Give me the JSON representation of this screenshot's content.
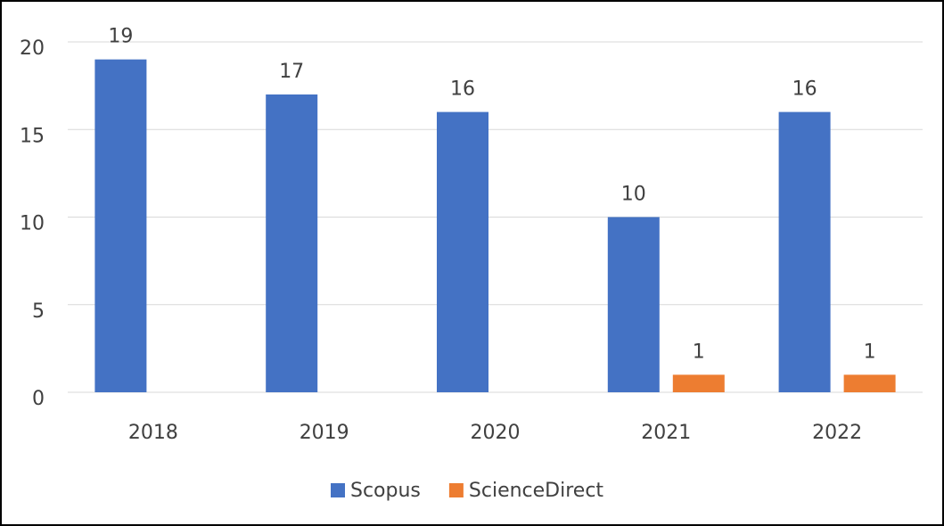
{
  "chart_data": {
    "type": "bar",
    "categories": [
      "2018",
      "2019",
      "2020",
      "2021",
      "2022"
    ],
    "series": [
      {
        "name": "Scopus",
        "color": "#4472c4",
        "values": [
          19,
          17,
          16,
          10,
          16
        ]
      },
      {
        "name": "ScienceDirect",
        "color": "#ed7d31",
        "values": [
          null,
          null,
          null,
          1,
          1
        ]
      }
    ],
    "ylim": [
      0,
      20
    ],
    "yticks": [
      0,
      5,
      10,
      15,
      20
    ],
    "grid": true,
    "legend": "bottom"
  }
}
